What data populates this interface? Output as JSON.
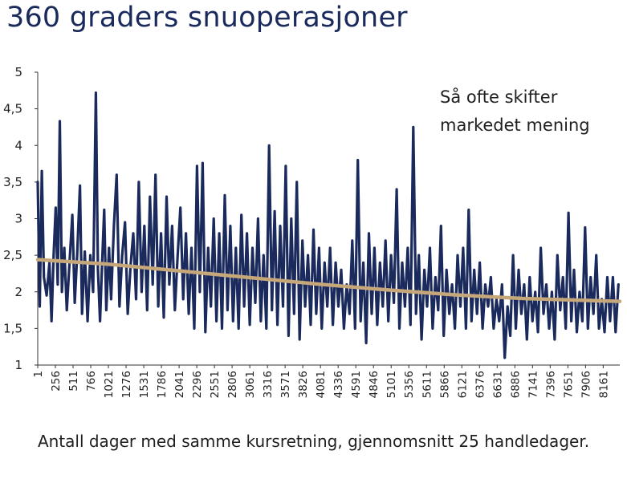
{
  "chart_data": {
    "type": "line",
    "title": "360 graders snuoperasjoner",
    "xlabel": "Antall dager med samme kursretning, gjennomsnitt 25 handledager.",
    "ylabel": "",
    "ylim": [
      1,
      5
    ],
    "yticks": [
      "1",
      "1,5",
      "2",
      "2,5",
      "3",
      "3,5",
      "4",
      "4,5",
      "5"
    ],
    "xlim": [
      1,
      8400
    ],
    "xticks": [
      1,
      256,
      511,
      766,
      1021,
      1276,
      1531,
      1786,
      2041,
      2296,
      2551,
      2806,
      3061,
      3316,
      3571,
      3826,
      4081,
      4336,
      4591,
      4846,
      5101,
      5356,
      5611,
      5866,
      6121,
      6376,
      6631,
      6886,
      7141,
      7396,
      7651,
      7906,
      8161
    ],
    "annotation": [
      "Så ofte skifter",
      "markedet mening"
    ],
    "grid": false,
    "series": [
      {
        "role": "data",
        "color": "#1b2a5c",
        "points": [
          [
            1,
            3.5
          ],
          [
            30,
            1.8
          ],
          [
            60,
            3.65
          ],
          [
            90,
            2.2
          ],
          [
            130,
            1.95
          ],
          [
            170,
            2.4
          ],
          [
            200,
            1.6
          ],
          [
            230,
            2.5
          ],
          [
            260,
            3.15
          ],
          [
            290,
            2.1
          ],
          [
            320,
            4.33
          ],
          [
            350,
            2.0
          ],
          [
            385,
            2.6
          ],
          [
            420,
            1.75
          ],
          [
            460,
            2.4
          ],
          [
            500,
            3.05
          ],
          [
            535,
            1.85
          ],
          [
            570,
            2.5
          ],
          [
            610,
            3.45
          ],
          [
            640,
            1.7
          ],
          [
            680,
            2.55
          ],
          [
            720,
            1.6
          ],
          [
            760,
            2.5
          ],
          [
            800,
            2.0
          ],
          [
            840,
            4.72
          ],
          [
            870,
            2.3
          ],
          [
            900,
            1.6
          ],
          [
            930,
            2.4
          ],
          [
            960,
            3.12
          ],
          [
            990,
            1.75
          ],
          [
            1030,
            2.6
          ],
          [
            1060,
            1.9
          ],
          [
            1100,
            2.9
          ],
          [
            1140,
            3.6
          ],
          [
            1180,
            1.8
          ],
          [
            1220,
            2.5
          ],
          [
            1260,
            2.95
          ],
          [
            1300,
            1.7
          ],
          [
            1340,
            2.35
          ],
          [
            1380,
            2.8
          ],
          [
            1420,
            1.9
          ],
          [
            1460,
            3.5
          ],
          [
            1500,
            2.0
          ],
          [
            1540,
            2.9
          ],
          [
            1580,
            1.75
          ],
          [
            1620,
            3.3
          ],
          [
            1660,
            2.1
          ],
          [
            1700,
            3.6
          ],
          [
            1740,
            1.8
          ],
          [
            1780,
            2.8
          ],
          [
            1820,
            1.65
          ],
          [
            1860,
            3.3
          ],
          [
            1900,
            2.1
          ],
          [
            1940,
            2.9
          ],
          [
            1980,
            1.75
          ],
          [
            2020,
            2.5
          ],
          [
            2060,
            3.15
          ],
          [
            2100,
            1.9
          ],
          [
            2140,
            2.8
          ],
          [
            2180,
            1.7
          ],
          [
            2220,
            2.6
          ],
          [
            2260,
            1.5
          ],
          [
            2300,
            3.72
          ],
          [
            2340,
            2.0
          ],
          [
            2380,
            3.76
          ],
          [
            2420,
            1.45
          ],
          [
            2460,
            2.6
          ],
          [
            2500,
            1.8
          ],
          [
            2540,
            3.0
          ],
          [
            2580,
            1.6
          ],
          [
            2620,
            2.8
          ],
          [
            2660,
            1.5
          ],
          [
            2700,
            3.32
          ],
          [
            2740,
            1.75
          ],
          [
            2780,
            2.9
          ],
          [
            2820,
            1.6
          ],
          [
            2860,
            2.6
          ],
          [
            2900,
            1.5
          ],
          [
            2940,
            3.05
          ],
          [
            2980,
            1.8
          ],
          [
            3020,
            2.8
          ],
          [
            3060,
            1.55
          ],
          [
            3100,
            2.6
          ],
          [
            3140,
            1.85
          ],
          [
            3180,
            3.0
          ],
          [
            3220,
            1.6
          ],
          [
            3260,
            2.5
          ],
          [
            3300,
            1.5
          ],
          [
            3340,
            4.0
          ],
          [
            3380,
            1.75
          ],
          [
            3420,
            3.1
          ],
          [
            3460,
            1.55
          ],
          [
            3500,
            2.9
          ],
          [
            3540,
            1.8
          ],
          [
            3580,
            3.72
          ],
          [
            3620,
            1.4
          ],
          [
            3660,
            3.0
          ],
          [
            3700,
            1.7
          ],
          [
            3740,
            3.5
          ],
          [
            3780,
            1.35
          ],
          [
            3820,
            2.7
          ],
          [
            3860,
            1.8
          ],
          [
            3900,
            2.5
          ],
          [
            3940,
            1.55
          ],
          [
            3980,
            2.85
          ],
          [
            4020,
            1.7
          ],
          [
            4060,
            2.6
          ],
          [
            4100,
            1.5
          ],
          [
            4140,
            2.4
          ],
          [
            4180,
            1.8
          ],
          [
            4220,
            2.6
          ],
          [
            4260,
            1.55
          ],
          [
            4300,
            2.4
          ],
          [
            4340,
            1.8
          ],
          [
            4380,
            2.3
          ],
          [
            4420,
            1.5
          ],
          [
            4460,
            2.1
          ],
          [
            4500,
            1.7
          ],
          [
            4540,
            2.7
          ],
          [
            4580,
            1.5
          ],
          [
            4620,
            3.8
          ],
          [
            4660,
            1.6
          ],
          [
            4700,
            2.4
          ],
          [
            4740,
            1.3
          ],
          [
            4780,
            2.8
          ],
          [
            4820,
            1.7
          ],
          [
            4860,
            2.6
          ],
          [
            4900,
            1.55
          ],
          [
            4940,
            2.4
          ],
          [
            4980,
            1.8
          ],
          [
            5020,
            2.7
          ],
          [
            5060,
            1.6
          ],
          [
            5100,
            2.5
          ],
          [
            5140,
            1.85
          ],
          [
            5180,
            3.4
          ],
          [
            5220,
            1.5
          ],
          [
            5260,
            2.4
          ],
          [
            5300,
            1.8
          ],
          [
            5340,
            2.6
          ],
          [
            5380,
            1.55
          ],
          [
            5420,
            4.25
          ],
          [
            5460,
            1.7
          ],
          [
            5500,
            2.5
          ],
          [
            5540,
            1.35
          ],
          [
            5580,
            2.3
          ],
          [
            5620,
            1.8
          ],
          [
            5660,
            2.6
          ],
          [
            5700,
            1.5
          ],
          [
            5740,
            2.2
          ],
          [
            5780,
            1.75
          ],
          [
            5820,
            2.9
          ],
          [
            5860,
            1.4
          ],
          [
            5900,
            2.3
          ],
          [
            5940,
            1.7
          ],
          [
            5980,
            2.1
          ],
          [
            6020,
            1.5
          ],
          [
            6060,
            2.5
          ],
          [
            6100,
            1.8
          ],
          [
            6140,
            2.6
          ],
          [
            6180,
            1.5
          ],
          [
            6220,
            3.12
          ],
          [
            6260,
            1.6
          ],
          [
            6300,
            2.3
          ],
          [
            6340,
            1.7
          ],
          [
            6380,
            2.4
          ],
          [
            6420,
            1.5
          ],
          [
            6460,
            2.1
          ],
          [
            6500,
            1.8
          ],
          [
            6540,
            2.2
          ],
          [
            6580,
            1.5
          ],
          [
            6620,
            1.9
          ],
          [
            6660,
            1.6
          ],
          [
            6700,
            2.1
          ],
          [
            6740,
            1.1
          ],
          [
            6780,
            1.8
          ],
          [
            6820,
            1.4
          ],
          [
            6860,
            2.5
          ],
          [
            6900,
            1.5
          ],
          [
            6940,
            2.3
          ],
          [
            6980,
            1.7
          ],
          [
            7020,
            2.1
          ],
          [
            7060,
            1.35
          ],
          [
            7100,
            2.2
          ],
          [
            7140,
            1.6
          ],
          [
            7180,
            2.0
          ],
          [
            7220,
            1.45
          ],
          [
            7260,
            2.6
          ],
          [
            7300,
            1.7
          ],
          [
            7340,
            2.1
          ],
          [
            7380,
            1.5
          ],
          [
            7420,
            2.0
          ],
          [
            7460,
            1.35
          ],
          [
            7500,
            2.5
          ],
          [
            7540,
            1.75
          ],
          [
            7580,
            2.2
          ],
          [
            7620,
            1.5
          ],
          [
            7660,
            3.08
          ],
          [
            7700,
            1.6
          ],
          [
            7740,
            2.3
          ],
          [
            7780,
            1.45
          ],
          [
            7820,
            2.0
          ],
          [
            7860,
            1.6
          ],
          [
            7900,
            2.88
          ],
          [
            7940,
            1.5
          ],
          [
            7980,
            2.2
          ],
          [
            8020,
            1.7
          ],
          [
            8060,
            2.5
          ],
          [
            8100,
            1.5
          ],
          [
            8140,
            1.9
          ],
          [
            8180,
            1.45
          ],
          [
            8220,
            2.2
          ],
          [
            8260,
            1.6
          ],
          [
            8300,
            2.2
          ],
          [
            8340,
            1.45
          ],
          [
            8380,
            2.1
          ]
        ]
      },
      {
        "role": "trend",
        "color": "#c6a77a",
        "points": [
          [
            1,
            2.44
          ],
          [
            1000,
            2.38
          ],
          [
            2000,
            2.29
          ],
          [
            3000,
            2.2
          ],
          [
            4000,
            2.11
          ],
          [
            5000,
            2.03
          ],
          [
            6000,
            1.96
          ],
          [
            7000,
            1.91
          ],
          [
            8400,
            1.87
          ]
        ]
      }
    ]
  }
}
